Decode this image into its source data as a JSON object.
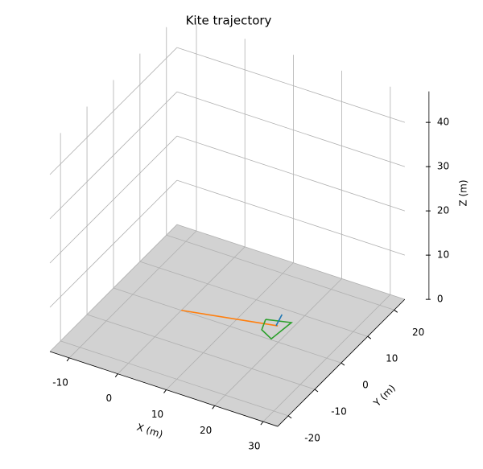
{
  "chart_data": {
    "type": "line3d",
    "title": "Kite trajectory",
    "xlabel": "X (m)",
    "ylabel": "Y (m)",
    "zlabel": "Z (m)",
    "xlim": [
      -14,
      33
    ],
    "ylim": [
      -24,
      24
    ],
    "zlim": [
      0,
      47
    ],
    "xticks": [
      -10,
      0,
      10,
      20,
      30
    ],
    "yticks": [
      -20,
      -10,
      0,
      10,
      20
    ],
    "zticks": [
      0,
      10,
      20,
      30,
      40
    ],
    "grid": true,
    "series": [
      {
        "color": "#ff7f0e",
        "x": [
          0,
          17.4
        ],
        "y": [
          0,
          4.6
        ],
        "z": [
          0,
          0
        ]
      },
      {
        "color": "#2ca02c",
        "x": [
          14.5,
          19,
          18.4,
          15.5,
          14.5
        ],
        "y": [
          5.3,
          6.8,
          0.3,
          2,
          5.3
        ],
        "z": [
          0,
          0,
          0,
          0,
          0
        ]
      },
      {
        "color": "#1f77b4",
        "x": [
          17.1,
          16.3
        ],
        "y": [
          4.5,
          8.2
        ],
        "z": [
          0,
          0
        ]
      }
    ]
  }
}
